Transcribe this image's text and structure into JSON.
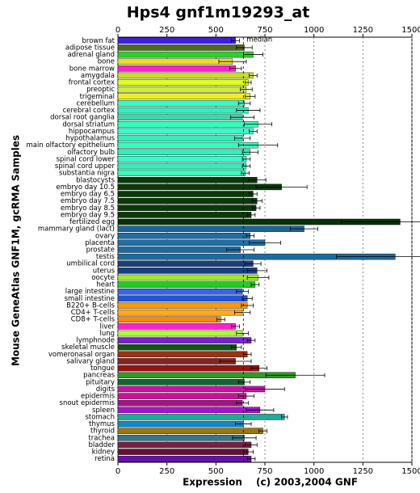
{
  "chart_data": {
    "type": "bar",
    "orientation": "horizontal",
    "title": "Hps4 gnf1m19293_at",
    "x_label": "Expression",
    "y_label": "Mouse GeneAtlas GNF1M, gcRMA Samples",
    "credit": "(c) 2003,2004 GNF",
    "median_label": "median",
    "median": 640,
    "categories": [
      "brown fat",
      "adipose tissue",
      "adrenal gland",
      "bone",
      "bone marrow",
      "amygdala",
      "frontal cortex",
      "preoptic",
      "trigeminal",
      "cerebellum",
      "cerebral cortex",
      "dorsal root ganglia",
      "dorsal striatum",
      "hippocampus",
      "hypothalamus",
      "main olfactory epithelium",
      "olfactory bulb",
      "spinal cord lower",
      "spinal cord upper",
      "substantia nigra",
      "blastocysts",
      "embryo day 10.5",
      "embryo day 6.5",
      "embryo day 7.5",
      "embryo day 8.5",
      "embryo day 9.5",
      "fertilized egg",
      "mammary gland (lact)",
      "ovary",
      "placenta",
      "prostate",
      "testis",
      "umbilical cord",
      "uterus",
      "oocyte",
      "heart",
      "large intestine",
      "small intestine",
      "B220+ B-cells",
      "CD4+ T-cells",
      "CD8+ T-cells",
      "liver",
      "lung",
      "lymphnode",
      "skeletal muscle",
      "vomeronasal organ",
      "salivary gland",
      "tongue",
      "pancreas",
      "pituitary",
      "digits",
      "epidermis",
      "snout epidermis",
      "spleen",
      "stomach",
      "thymus",
      "thyroid",
      "trachea",
      "bladder",
      "kidney",
      "retina"
    ],
    "values": [
      600,
      645,
      690,
      585,
      600,
      690,
      665,
      655,
      675,
      645,
      665,
      635,
      715,
      690,
      635,
      715,
      675,
      655,
      655,
      650,
      710,
      835,
      690,
      710,
      705,
      680,
      1440,
      950,
      675,
      750,
      625,
      1415,
      690,
      710,
      715,
      700,
      635,
      660,
      660,
      635,
      525,
      600,
      635,
      680,
      605,
      660,
      600,
      720,
      905,
      645,
      750,
      655,
      635,
      725,
      850,
      640,
      740,
      645,
      680,
      665,
      680
    ],
    "errors": [
      20,
      40,
      50,
      70,
      30,
      20,
      15,
      30,
      25,
      30,
      60,
      60,
      70,
      20,
      40,
      100,
      40,
      20,
      20,
      20,
      45,
      130,
      20,
      25,
      20,
      20,
      300,
      70,
      20,
      80,
      70,
      300,
      40,
      50,
      55,
      20,
      30,
      25,
      30,
      40,
      20,
      20,
      30,
      20,
      25,
      20,
      80,
      40,
      150,
      30,
      100,
      40,
      30,
      70,
      15,
      40,
      20,
      60,
      30,
      25,
      20
    ],
    "colors": [
      "#3f1fe8",
      "#4d6b1f",
      "#33cc33",
      "#eedd22",
      "#ff22cc",
      "#ccdd22",
      "#ddff22",
      "#ccee33",
      "#eeee22",
      "#33ffbb",
      "#33eebb",
      "#33ddaa",
      "#33ffbb",
      "#33ffcc",
      "#33eebb",
      "#33ffbb",
      "#33eebb",
      "#33ffcc",
      "#33eebb",
      "#33ffbb",
      "#0a3a0a",
      "#0a3a0a",
      "#0a3a0a",
      "#0a3a0a",
      "#0a3a0a",
      "#0a3a0a",
      "#053305",
      "#1a6699",
      "#1e6fa0",
      "#1f70a8",
      "#1e6a9e",
      "#1e6a9e",
      "#1a3f80",
      "#1a3f80",
      "#99ee22",
      "#22cc22",
      "#3366ee",
      "#2255dd",
      "#ff9900",
      "#ffaa22",
      "#ff8800",
      "#ff22cc",
      "#aaff33",
      "#7722cc",
      "#115511",
      "#993311",
      "#882222",
      "#991111",
      "#339922",
      "#116633",
      "#cc11aa",
      "#cc1199",
      "#aa1188",
      "#aa11cc",
      "#22aa99",
      "#1188cc",
      "#997711",
      "#337788",
      "#772244",
      "#661133",
      "#6611aa"
    ],
    "xlim": [
      0,
      1500
    ],
    "xticks": [
      0,
      250,
      500,
      750,
      1000,
      1250,
      1500
    ],
    "grid": true
  }
}
